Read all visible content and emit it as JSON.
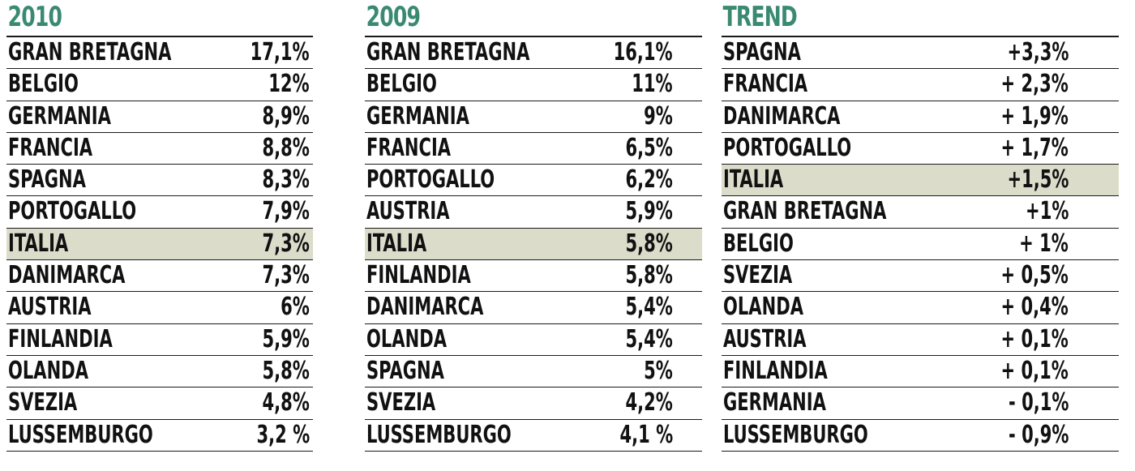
{
  "columns": [
    {
      "heading": "2010",
      "rows": [
        {
          "name": "GRAN BRETAGNA",
          "value": "17,1%"
        },
        {
          "name": "BELGIO",
          "value": "12%"
        },
        {
          "name": "GERMANIA",
          "value": "8,9%"
        },
        {
          "name": "FRANCIA",
          "value": "8,8%"
        },
        {
          "name": "SPAGNA",
          "value": "8,3%"
        },
        {
          "name": "PORTOGALLO",
          "value": "7,9%"
        },
        {
          "name": "ITALIA",
          "value": "7,3%"
        },
        {
          "name": "DANIMARCA",
          "value": "7,3%"
        },
        {
          "name": "AUSTRIA",
          "value": "6%"
        },
        {
          "name": "FINLANDIA",
          "value": "5,9%"
        },
        {
          "name": "OLANDA",
          "value": "5,8%"
        },
        {
          "name": "SVEZIA",
          "value": "4,8%"
        },
        {
          "name": "LUSSEMBURGO",
          "value": "3,2 %"
        }
      ]
    },
    {
      "heading": "2009",
      "rows": [
        {
          "name": "GRAN BRETAGNA",
          "value": "16,1%"
        },
        {
          "name": "BELGIO",
          "value": "11%"
        },
        {
          "name": "GERMANIA",
          "value": "9%"
        },
        {
          "name": "FRANCIA",
          "value": "6,5%"
        },
        {
          "name": "PORTOGALLO",
          "value": "6,2%"
        },
        {
          "name": "AUSTRIA",
          "value": "5,9%"
        },
        {
          "name": "ITALIA",
          "value": "5,8%"
        },
        {
          "name": "FINLANDIA",
          "value": "5,8%"
        },
        {
          "name": "DANIMARCA",
          "value": "5,4%"
        },
        {
          "name": "OLANDA",
          "value": "5,4%"
        },
        {
          "name": "SPAGNA",
          "value": "5%"
        },
        {
          "name": "SVEZIA",
          "value": "4,2%"
        },
        {
          "name": "LUSSEMBURGO",
          "value": "4,1 %"
        }
      ]
    },
    {
      "heading": "TREND",
      "rows": [
        {
          "name": "SPAGNA",
          "value": "+3,3%"
        },
        {
          "name": "FRANCIA",
          "value": "+ 2,3%"
        },
        {
          "name": "DANIMARCA",
          "value": "+ 1,9%"
        },
        {
          "name": "PORTOGALLO",
          "value": "+ 1,7%"
        },
        {
          "name": "ITALIA",
          "value": "+1,5%"
        },
        {
          "name": "GRAN BRETAGNA",
          "value": "+1%"
        },
        {
          "name": "BELGIO",
          "value": "+ 1%"
        },
        {
          "name": "SVEZIA",
          "value": "+ 0,5%"
        },
        {
          "name": "OLANDA",
          "value": "+ 0,4%"
        },
        {
          "name": "AUSTRIA",
          "value": "+ 0,1%"
        },
        {
          "name": "FINLANDIA",
          "value": "+ 0,1%"
        },
        {
          "name": "GERMANIA",
          "value": "- 0,1%"
        },
        {
          "name": "LUSSEMBURGO",
          "value": "- 0,9%"
        }
      ]
    }
  ],
  "highlight": {
    "name": "ITALIA",
    "color": "#dcdccb"
  },
  "colors": {
    "heading": "#3a8a72",
    "text": "#111111",
    "rule": "#1a1a1a"
  }
}
